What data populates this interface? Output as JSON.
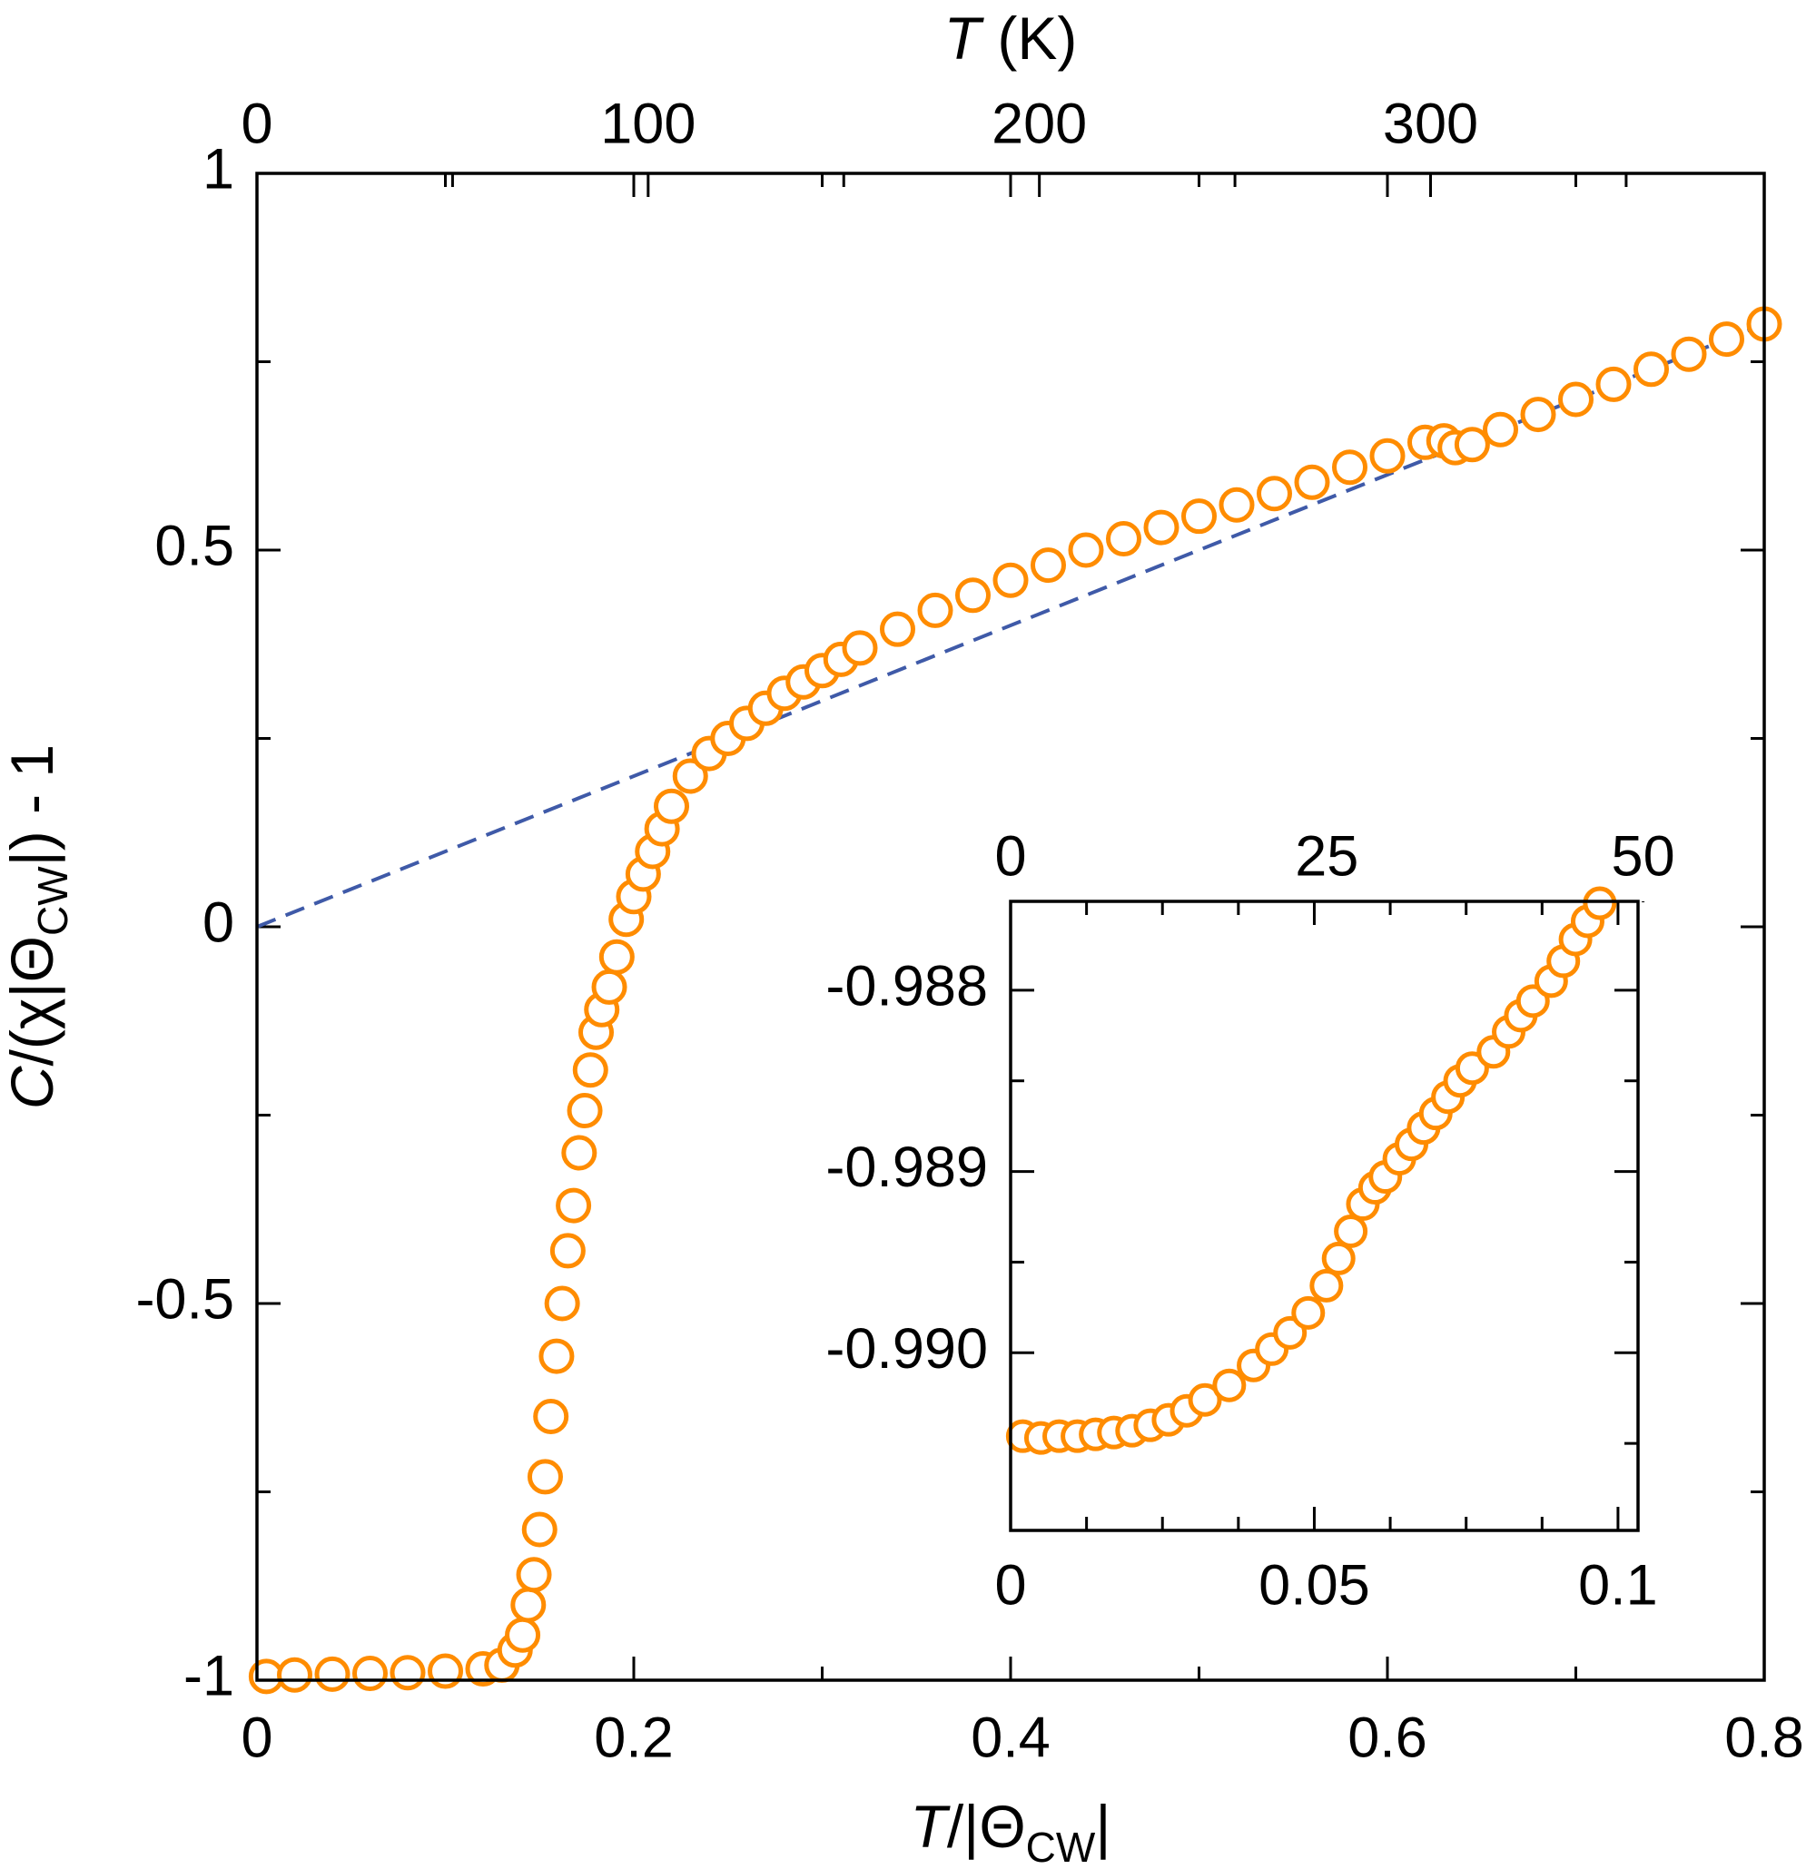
{
  "chart_data": [
    {
      "type": "scatter",
      "xlabel": [
        "T",
        "/|Θ",
        "CW",
        "|"
      ],
      "ylabel": [
        "C",
        "/(χ|Θ",
        "CW",
        "|) - 1"
      ],
      "x2label": [
        "T",
        " (K)"
      ],
      "xlim": [
        0,
        0.8
      ],
      "xticks": [
        0,
        0.2,
        0.4,
        0.6,
        0.8
      ],
      "xminorticks": [
        0.1,
        0.3,
        0.5,
        0.7
      ],
      "ylim": [
        -1,
        1
      ],
      "yticks": [
        -1,
        -0.5,
        0,
        0.5,
        1
      ],
      "yminorticks": [
        -0.75,
        -0.25,
        0.25,
        0.75
      ],
      "x2lim": [
        0,
        385.3
      ],
      "x2ticks": [
        0,
        100,
        200,
        300
      ],
      "x2minorticks": [
        50,
        150,
        250,
        350
      ],
      "series": [
        {
          "type": "scatter",
          "color": "#ff8c00",
          "x": [
            0.005,
            0.02,
            0.04,
            0.06,
            0.08,
            0.1,
            0.12,
            0.13,
            0.137,
            0.141,
            0.144,
            0.147,
            0.15,
            0.153,
            0.156,
            0.159,
            0.162,
            0.165,
            0.168,
            0.171,
            0.174,
            0.177,
            0.18,
            0.183,
            0.187,
            0.191,
            0.196,
            0.2,
            0.205,
            0.21,
            0.215,
            0.22,
            0.23,
            0.24,
            0.25,
            0.26,
            0.27,
            0.28,
            0.29,
            0.3,
            0.31,
            0.32,
            0.34,
            0.36,
            0.38,
            0.4,
            0.42,
            0.44,
            0.46,
            0.48,
            0.5,
            0.52,
            0.54,
            0.56,
            0.58,
            0.6,
            0.62,
            0.63,
            0.636,
            0.645,
            0.66,
            0.68,
            0.7,
            0.72,
            0.74,
            0.76,
            0.78,
            0.8
          ],
          "values": [
            -0.995,
            -0.993,
            -0.992,
            -0.991,
            -0.99,
            -0.988,
            -0.985,
            -0.98,
            -0.96,
            -0.94,
            -0.9,
            -0.86,
            -0.8,
            -0.73,
            -0.65,
            -0.57,
            -0.5,
            -0.43,
            -0.37,
            -0.3,
            -0.244,
            -0.19,
            -0.14,
            -0.11,
            -0.08,
            -0.04,
            0.01,
            0.04,
            0.07,
            0.1,
            0.13,
            0.16,
            0.2,
            0.23,
            0.25,
            0.27,
            0.29,
            0.31,
            0.325,
            0.34,
            0.355,
            0.37,
            0.395,
            0.42,
            0.44,
            0.46,
            0.48,
            0.5,
            0.515,
            0.53,
            0.545,
            0.56,
            0.575,
            0.59,
            0.61,
            0.625,
            0.643,
            0.645,
            0.636,
            0.64,
            0.66,
            0.68,
            0.7,
            0.72,
            0.74,
            0.76,
            0.78,
            0.8
          ]
        },
        {
          "type": "line",
          "color": "#3f5aa8",
          "dashed": true,
          "x": [
            0,
            0.8
          ],
          "values": [
            0,
            0.8
          ]
        }
      ]
    },
    {
      "type": "scatter",
      "xlim": [
        0,
        0.1033
      ],
      "xticks": [
        0,
        0.05,
        0.1
      ],
      "xminorticks": [
        0.0125,
        0.025,
        0.0375,
        0.0625,
        0.075,
        0.0875
      ],
      "ylim": [
        -0.99098,
        -0.98751
      ],
      "yticks": [
        -0.988,
        -0.989,
        {
          "value": -0.99,
          "label": "-0.990"
        }
      ],
      "yminorticks": [
        -0.9885,
        -0.9895,
        -0.9905
      ],
      "x2lim": [
        0,
        49.6
      ],
      "x2ticks": [
        0,
        25,
        50
      ],
      "x2minorticks": [],
      "series": [
        {
          "type": "scatter",
          "color": "#ff8c00",
          "x": [
            0.002,
            0.005,
            0.008,
            0.011,
            0.014,
            0.017,
            0.02,
            0.023,
            0.026,
            0.029,
            0.032,
            0.036,
            0.04,
            0.043,
            0.046,
            0.049,
            0.052,
            0.054,
            0.056,
            0.058,
            0.06,
            0.0617,
            0.064,
            0.066,
            0.068,
            0.07,
            0.072,
            0.074,
            0.076,
            0.0795,
            0.082,
            0.084,
            0.086,
            0.089,
            0.091,
            0.093,
            0.095,
            0.097
          ],
          "values": [
            -0.99046,
            -0.99047,
            -0.99046,
            -0.99046,
            -0.99045,
            -0.99044,
            -0.99043,
            -0.9904,
            -0.99037,
            -0.99032,
            -0.99026,
            -0.99018,
            -0.99007,
            -0.98998,
            -0.98989,
            -0.98978,
            -0.98963,
            -0.98948,
            -0.98933,
            -0.98918,
            -0.98909,
            -0.98903,
            -0.98893,
            -0.98885,
            -0.98876,
            -0.98868,
            -0.98859,
            -0.9885,
            -0.98843,
            -0.98834,
            -0.98823,
            -0.98814,
            -0.98806,
            -0.98795,
            -0.98784,
            -0.98772,
            -0.98762,
            -0.98752
          ]
        }
      ]
    }
  ]
}
